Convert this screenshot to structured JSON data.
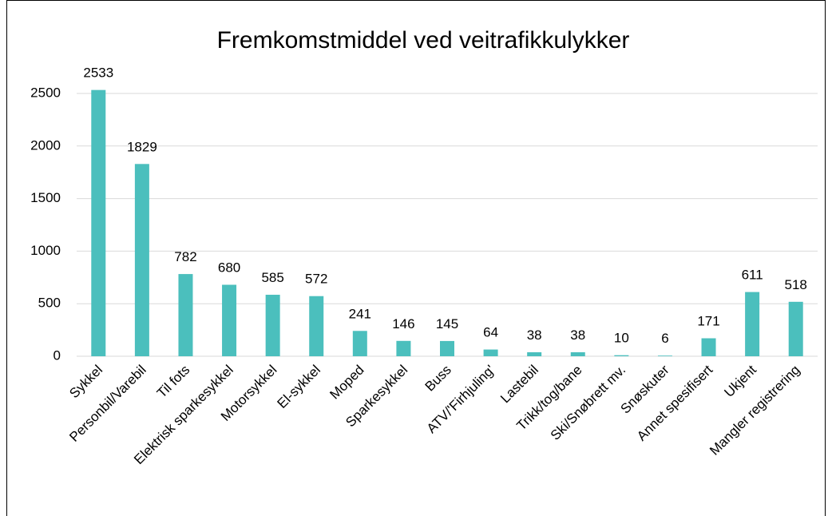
{
  "chart_data": {
    "type": "bar",
    "title": "Fremkomstmiddel ved veitrafikkulykker",
    "categories": [
      "Sykkel",
      "Personbil/Varebil",
      "Til fots",
      "Elektrisk sparkesykkel",
      "Motorsykkel",
      "El-sykkel",
      "Moped",
      "Sparkesykkel",
      "Buss",
      "ATV/'Firhjuling'",
      "Lastebil",
      "Trikk/tog/bane",
      "Ski/Snøbrett mv.",
      "Snøskuter",
      "Annet spesifisert",
      "Ukjent",
      "Mangler registrering"
    ],
    "values": [
      2533,
      1829,
      782,
      680,
      585,
      572,
      241,
      146,
      145,
      64,
      38,
      38,
      10,
      6,
      171,
      611,
      518
    ],
    "color": "#4bbfbd",
    "ylim": [
      0,
      2500
    ],
    "yticks": [
      0,
      500,
      1000,
      1500,
      2000,
      2500
    ],
    "grid": true
  }
}
